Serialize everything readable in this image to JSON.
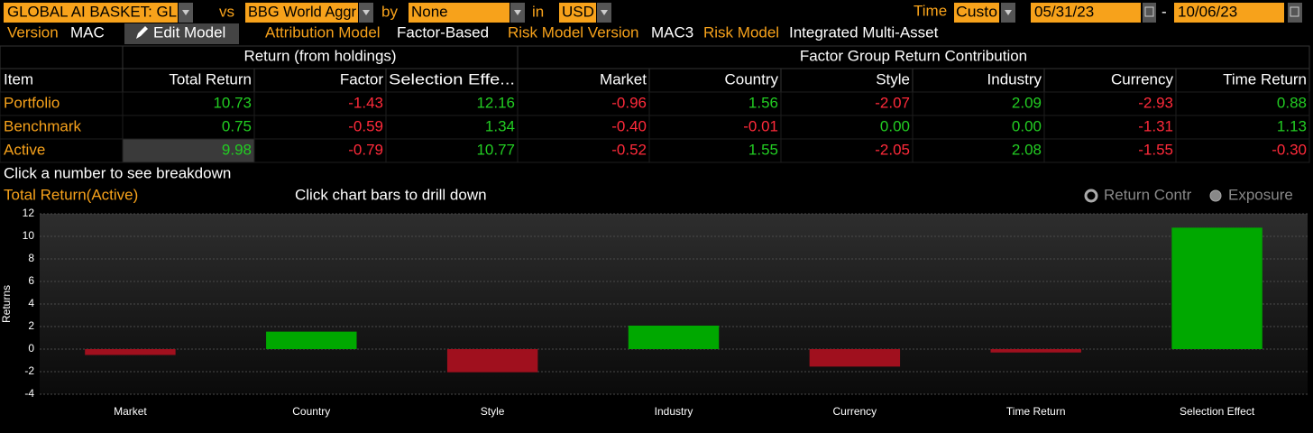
{
  "toolbar": {
    "portfolio": "GLOBAL AI BASKET: GL",
    "vs": "vs",
    "benchmark": "BBG World Aggr",
    "by": "by",
    "grouping": "None",
    "in": "in",
    "currency": "USD",
    "time_label": "Time",
    "time_mode": "Custo",
    "start_date": "05/31/23",
    "date_separator": "-",
    "end_date": "10/06/23"
  },
  "settings": {
    "version_label": "Version",
    "version": "MAC",
    "edit_button": "Edit Model",
    "attribution_label": "Attribution Model",
    "attribution": "Factor-Based",
    "risk_version_label": "Risk Model Version",
    "risk_version": "MAC3",
    "risk_model_label": "Risk Model",
    "risk_model": "Integrated Multi-Asset"
  },
  "table": {
    "group_headers": [
      "Return (from holdings)",
      "Factor Group Return Contribution"
    ],
    "columns": [
      "Item",
      "Total Return",
      "Factor",
      "Selection Effe...",
      "Market",
      "Country",
      "Style",
      "Industry",
      "Currency",
      "Time Return"
    ],
    "rows": [
      [
        "Portfolio",
        "10.73",
        "-1.43",
        "12.16",
        "-0.96",
        "1.56",
        "-2.07",
        "2.09",
        "-2.93",
        "0.88"
      ],
      [
        "Benchmark",
        "0.75",
        "-0.59",
        "1.34",
        "-0.40",
        "-0.01",
        "0.00",
        "0.00",
        "-1.31",
        "1.13"
      ],
      [
        "Active",
        "9.98",
        "-0.79",
        "10.77",
        "-0.52",
        "1.55",
        "-2.05",
        "2.08",
        "-1.55",
        "-0.30"
      ]
    ]
  },
  "hint": "Click a number to see breakdown",
  "chart_data": {
    "type": "bar",
    "title": "Total Return(Active)",
    "subtitle": "Click chart bars to drill down",
    "options": [
      "Return Contr",
      "Exposure"
    ],
    "selected_option": 0,
    "ylabel": "Returns",
    "categories": [
      "Market",
      "Country",
      "Style",
      "Industry",
      "Currency",
      "Time Return",
      "Selection Effect"
    ],
    "values": [
      -0.52,
      1.55,
      -2.05,
      2.08,
      -1.55,
      -0.3,
      10.77
    ],
    "positive_color": "#00a800",
    "negative_color": "#a0101e",
    "ylim": [
      -4,
      12
    ],
    "yticks": [
      -4,
      -2,
      0,
      2,
      4,
      6,
      8,
      10,
      12
    ],
    "grid": true
  }
}
